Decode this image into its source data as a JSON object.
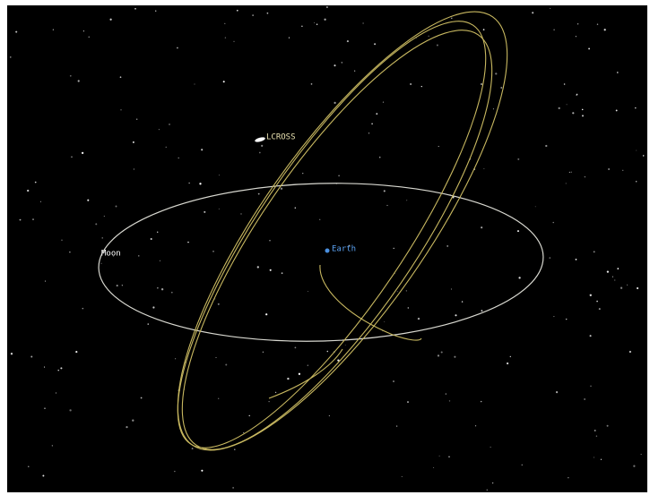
{
  "labels": {
    "spacecraft": "LCROSS",
    "moon": "Moon",
    "earth": "Earth"
  }
}
